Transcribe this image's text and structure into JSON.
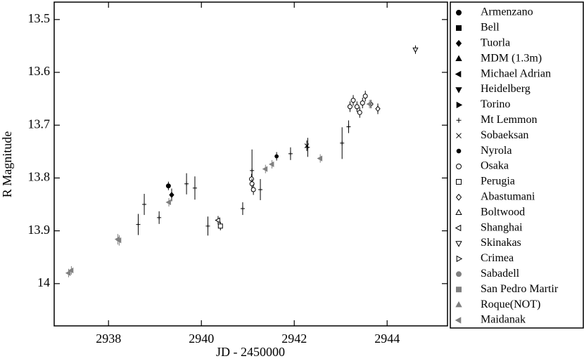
{
  "chart_data": {
    "type": "scatter",
    "x_label": "JD - 2450000",
    "y_label": "R Magnitude",
    "xlim": [
      2936.83,
      2945.3
    ],
    "ylim": [
      13.467,
      14.08
    ],
    "y_inverted": true,
    "xticks": [
      2938,
      2940,
      2942,
      2944
    ],
    "yticks": [
      13.5,
      13.6,
      13.7,
      13.8,
      13.9,
      14
    ],
    "legend": "outside-right",
    "series": [
      {
        "name": "Armenzano",
        "marker": "circle",
        "filled": true,
        "color": "#000000",
        "x": [
          2939.29
        ],
        "values": [
          13.815
        ],
        "errors": [
          0.008
        ]
      },
      {
        "name": "Bell",
        "marker": "square",
        "filled": true,
        "color": "#000000",
        "x": [],
        "values": [],
        "errors": []
      },
      {
        "name": "Tuorla",
        "marker": "diamond",
        "filled": true,
        "color": "#000000",
        "x": [
          2939.36
        ],
        "values": [
          13.832
        ],
        "errors": [
          0.012
        ]
      },
      {
        "name": "MDM (1.3m)",
        "marker": "triangle-up",
        "filled": true,
        "color": "#000000",
        "x": [],
        "values": [],
        "errors": []
      },
      {
        "name": "Michael Adrian",
        "marker": "triangle-left",
        "filled": true,
        "color": "#000000",
        "x": [],
        "values": [],
        "errors": []
      },
      {
        "name": "Heidelberg",
        "marker": "triangle-down",
        "filled": true,
        "color": "#000000",
        "x": [],
        "values": [],
        "errors": []
      },
      {
        "name": "Torino",
        "marker": "triangle-right",
        "filled": true,
        "color": "#000000",
        "x": [],
        "values": [],
        "errors": []
      },
      {
        "name": "Mt Lemmon",
        "marker": "plus",
        "filled": true,
        "color": "#000000",
        "x": [
          2938.64,
          2938.77,
          2939.09,
          2939.68,
          2939.86,
          2940.14,
          2940.89,
          2941.09,
          2941.27,
          2941.92,
          2942.29,
          2943.03,
          2943.17
        ],
        "values": [
          13.888,
          13.85,
          13.875,
          13.811,
          13.819,
          13.891,
          13.858,
          13.786,
          13.822,
          13.754,
          13.742,
          13.734,
          13.703
        ],
        "errors": [
          0.02,
          0.02,
          0.012,
          0.02,
          0.022,
          0.018,
          0.012,
          0.04,
          0.02,
          0.012,
          0.018,
          0.03,
          0.012
        ]
      },
      {
        "name": "Sobaeksan",
        "marker": "x",
        "filled": true,
        "color": "#000000",
        "x": [
          2942.27
        ],
        "values": [
          13.739
        ],
        "errors": [
          0.01
        ]
      },
      {
        "name": "Nyrola",
        "marker": "star",
        "filled": true,
        "color": "#000000",
        "x": [
          2941.62
        ],
        "values": [
          13.759
        ],
        "errors": [
          0.008
        ]
      },
      {
        "name": "Osaka",
        "marker": "circle",
        "filled": false,
        "color": "#000000",
        "x": [
          2941.08,
          2941.09,
          2941.12,
          2943.2,
          2943.27,
          2943.35,
          2943.41,
          2943.47,
          2943.53
        ],
        "values": [
          13.802,
          13.811,
          13.822,
          13.665,
          13.653,
          13.665,
          13.676,
          13.658,
          13.645
        ],
        "errors": [
          0.01,
          0.01,
          0.01,
          0.01,
          0.01,
          0.01,
          0.01,
          0.01,
          0.01
        ]
      },
      {
        "name": "Perugia",
        "marker": "square",
        "filled": false,
        "color": "#000000",
        "x": [
          2940.41
        ],
        "values": [
          13.891
        ],
        "errors": [
          0.008
        ]
      },
      {
        "name": "Abastumani",
        "marker": "diamond",
        "filled": false,
        "color": "#000000",
        "x": [
          2943.65,
          2943.8
        ],
        "values": [
          13.66,
          13.669
        ],
        "errors": [
          0.008,
          0.01
        ]
      },
      {
        "name": "Boltwood",
        "marker": "triangle-up",
        "filled": false,
        "color": "#000000",
        "x": [],
        "values": [],
        "errors": []
      },
      {
        "name": "Shanghai",
        "marker": "triangle-left",
        "filled": false,
        "color": "#000000",
        "x": [
          2940.36
        ],
        "values": [
          13.88
        ],
        "errors": [
          0.008
        ]
      },
      {
        "name": "Skinakas",
        "marker": "triangle-down",
        "filled": false,
        "color": "#000000",
        "x": [
          2944.61
        ],
        "values": [
          13.557
        ],
        "errors": [
          0.008
        ]
      },
      {
        "name": "Crimea",
        "marker": "triangle-right",
        "filled": false,
        "color": "#000000",
        "x": [],
        "values": [],
        "errors": []
      },
      {
        "name": "Sabadell",
        "marker": "circle",
        "filled": true,
        "color": "#808080",
        "x": [],
        "values": [],
        "errors": []
      },
      {
        "name": "San Pedro Martir",
        "marker": "square",
        "filled": true,
        "color": "#808080",
        "x": [],
        "values": [],
        "errors": []
      },
      {
        "name": "Roque(NOT)",
        "marker": "triangle-up",
        "filled": true,
        "color": "#808080",
        "x": [],
        "values": [],
        "errors": []
      },
      {
        "name": "Maidanak",
        "marker": "triangle-left",
        "filled": true,
        "color": "#808080",
        "x": [
          2937.14,
          2937.2,
          2938.2,
          2938.23,
          2939.3,
          2941.38,
          2941.52,
          2942.56,
          2943.62
        ],
        "values": [
          13.98,
          13.975,
          13.916,
          13.918,
          13.846,
          13.783,
          13.774,
          13.763,
          13.66
        ],
        "errors": [
          0.008,
          0.008,
          0.01,
          0.01,
          0.008,
          0.008,
          0.008,
          0.008,
          0.008
        ]
      }
    ]
  }
}
